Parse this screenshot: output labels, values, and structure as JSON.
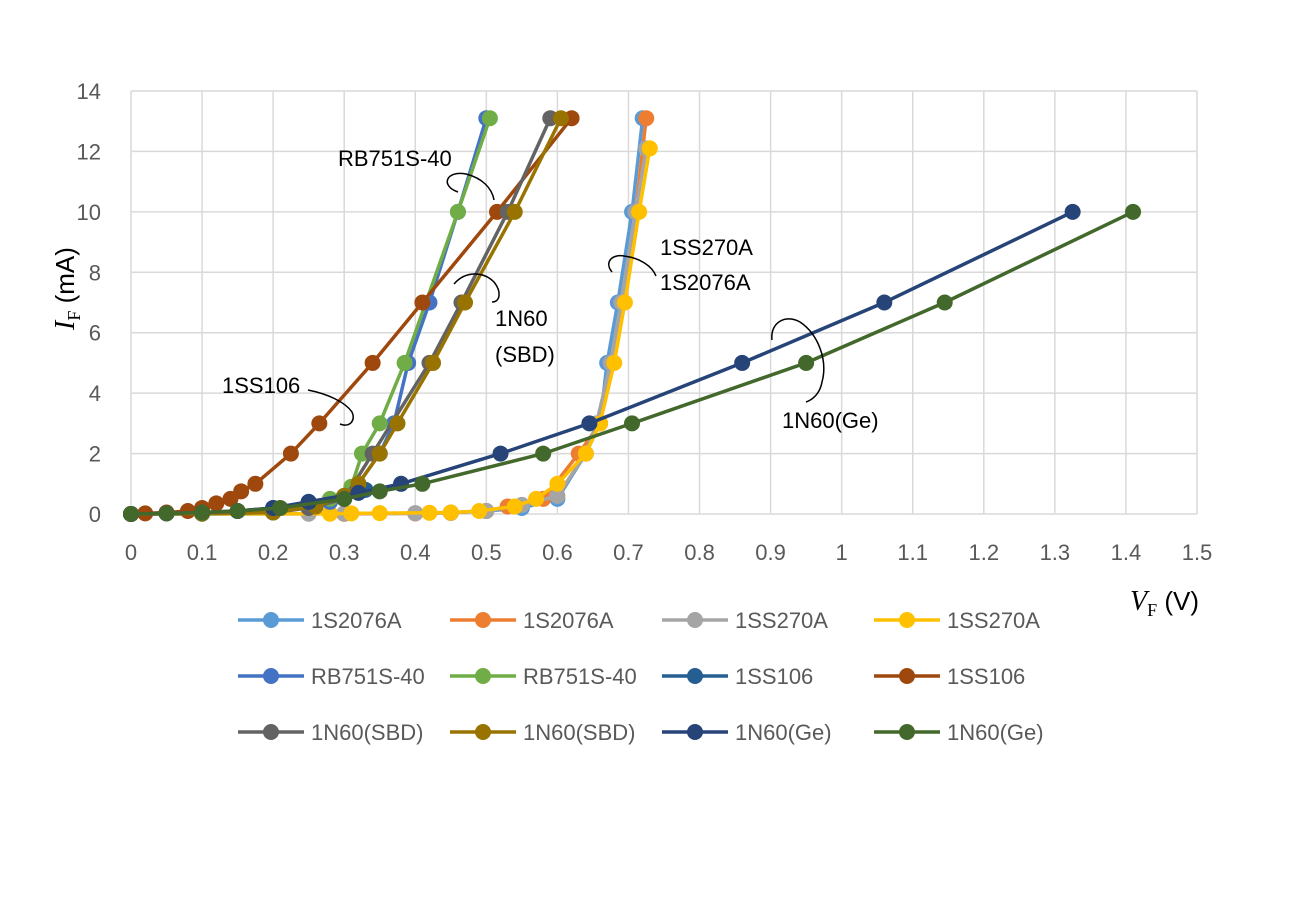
{
  "chart_data": {
    "type": "scatter",
    "xlabel": {
      "symbol": "V",
      "sub": "F",
      "unit": " (V)"
    },
    "ylabel": {
      "symbol": "I",
      "sub": "F",
      "unit": " (mA)"
    },
    "xlim": [
      0,
      1.5
    ],
    "ylim": [
      0,
      14
    ],
    "x_ticks": [
      0,
      0.1,
      0.2,
      0.3,
      0.4,
      0.5,
      0.6,
      0.7,
      0.8,
      0.9,
      1,
      1.1,
      1.2,
      1.3,
      1.4,
      1.5
    ],
    "x_tick_labels": [
      "0",
      "0.1",
      "0.2",
      "0.3",
      "0.4",
      "0.5",
      "0.6",
      "0.7",
      "0.8",
      "0.9",
      "1",
      "1.1",
      "1.2",
      "1.3",
      "1.4",
      "1.5"
    ],
    "y_ticks": [
      0,
      2,
      4,
      6,
      8,
      10,
      12,
      14
    ],
    "y_tick_labels": [
      "0",
      "2",
      "4",
      "6",
      "8",
      "10",
      "12",
      "14"
    ],
    "grid": true,
    "legend_position": "bottom",
    "annotations": [
      "RB751S-40",
      "1SS106",
      "1N60",
      "(SBD)",
      "1SS270A",
      "1S2076A",
      "1N60(Ge)"
    ],
    "series": [
      {
        "name": "1S2076A",
        "color": "#5B9BD5",
        "points": [
          [
            0,
            0
          ],
          [
            0.3,
            0.01
          ],
          [
            0.4,
            0.02
          ],
          [
            0.45,
            0.04
          ],
          [
            0.5,
            0.1
          ],
          [
            0.55,
            0.2
          ],
          [
            0.6,
            0.5
          ],
          [
            0.64,
            2
          ],
          [
            0.66,
            3
          ],
          [
            0.67,
            5
          ],
          [
            0.685,
            7
          ],
          [
            0.705,
            10
          ],
          [
            0.72,
            13.1
          ]
        ]
      },
      {
        "name": "1S2076A",
        "color": "#ED7D31",
        "points": [
          [
            0,
            0
          ],
          [
            0.3,
            0.01
          ],
          [
            0.4,
            0.02
          ],
          [
            0.45,
            0.04
          ],
          [
            0.5,
            0.1
          ],
          [
            0.53,
            0.25
          ],
          [
            0.58,
            0.5
          ],
          [
            0.63,
            2
          ],
          [
            0.66,
            3
          ],
          [
            0.675,
            5
          ],
          [
            0.69,
            7
          ],
          [
            0.71,
            10
          ],
          [
            0.725,
            13.1
          ]
        ]
      },
      {
        "name": "1SS270A",
        "color": "#A5A5A5",
        "points": [
          [
            0,
            0
          ],
          [
            0.25,
            0.01
          ],
          [
            0.3,
            0.02
          ],
          [
            0.4,
            0.03
          ],
          [
            0.45,
            0.05
          ],
          [
            0.5,
            0.1
          ],
          [
            0.55,
            0.3
          ],
          [
            0.6,
            0.6
          ],
          [
            0.64,
            2
          ],
          [
            0.655,
            3
          ],
          [
            0.675,
            5
          ],
          [
            0.69,
            7
          ],
          [
            0.71,
            10
          ],
          [
            0.725,
            12.1
          ]
        ]
      },
      {
        "name": "1SS270A",
        "color": "#FFC000",
        "points": [
          [
            0,
            0
          ],
          [
            0.28,
            0.01
          ],
          [
            0.31,
            0.02
          ],
          [
            0.35,
            0.03
          ],
          [
            0.42,
            0.04
          ],
          [
            0.45,
            0.05
          ],
          [
            0.49,
            0.1
          ],
          [
            0.54,
            0.25
          ],
          [
            0.57,
            0.5
          ],
          [
            0.6,
            1
          ],
          [
            0.64,
            2
          ],
          [
            0.66,
            3
          ],
          [
            0.68,
            5
          ],
          [
            0.695,
            7
          ],
          [
            0.715,
            10
          ],
          [
            0.73,
            12.1
          ]
        ]
      },
      {
        "name": "RB751S-40",
        "color": "#4472C4",
        "points": [
          [
            0,
            0
          ],
          [
            0.1,
            0.01
          ],
          [
            0.2,
            0.05
          ],
          [
            0.28,
            0.4
          ],
          [
            0.32,
            1
          ],
          [
            0.35,
            2
          ],
          [
            0.37,
            3
          ],
          [
            0.39,
            5
          ],
          [
            0.42,
            7
          ],
          [
            0.46,
            10
          ],
          [
            0.5,
            13.1
          ]
        ]
      },
      {
        "name": "RB751S-40",
        "color": "#70AD47",
        "points": [
          [
            0,
            0
          ],
          [
            0.1,
            0.01
          ],
          [
            0.2,
            0.05
          ],
          [
            0.28,
            0.5
          ],
          [
            0.31,
            0.9
          ],
          [
            0.325,
            2
          ],
          [
            0.35,
            3
          ],
          [
            0.385,
            5
          ],
          [
            0.46,
            10
          ],
          [
            0.505,
            13.1
          ]
        ]
      },
      {
        "name": "1SS106",
        "color": "#255E91",
        "points": [
          [
            0,
            0
          ],
          [
            0.05,
            0.02
          ],
          [
            0.1,
            0.05
          ],
          [
            0.15,
            0.1
          ],
          [
            0.2,
            0.2
          ],
          [
            0.25,
            0.4
          ],
          [
            0.3,
            0.6
          ],
          [
            0.33,
            0.8
          ]
        ]
      },
      {
        "name": "1SS106",
        "color": "#9E480E",
        "points": [
          [
            0,
            0
          ],
          [
            0.02,
            0.02
          ],
          [
            0.05,
            0.05
          ],
          [
            0.08,
            0.1
          ],
          [
            0.1,
            0.2
          ],
          [
            0.12,
            0.35
          ],
          [
            0.14,
            0.5
          ],
          [
            0.155,
            0.75
          ],
          [
            0.175,
            1
          ],
          [
            0.225,
            2
          ],
          [
            0.265,
            3
          ],
          [
            0.34,
            5
          ],
          [
            0.41,
            7
          ],
          [
            0.515,
            10
          ],
          [
            0.62,
            13.1
          ]
        ]
      },
      {
        "name": "1N60(SBD)",
        "color": "#636363",
        "points": [
          [
            0,
            0
          ],
          [
            0.1,
            0.02
          ],
          [
            0.2,
            0.05
          ],
          [
            0.25,
            0.2
          ],
          [
            0.3,
            0.5
          ],
          [
            0.34,
            2
          ],
          [
            0.42,
            5
          ],
          [
            0.465,
            7
          ],
          [
            0.53,
            10
          ],
          [
            0.59,
            13.1
          ]
        ]
      },
      {
        "name": "1N60(SBD)",
        "color": "#997300",
        "points": [
          [
            0,
            0
          ],
          [
            0.1,
            0.02
          ],
          [
            0.2,
            0.05
          ],
          [
            0.26,
            0.25
          ],
          [
            0.3,
            0.6
          ],
          [
            0.32,
            1
          ],
          [
            0.35,
            2
          ],
          [
            0.375,
            3
          ],
          [
            0.425,
            5
          ],
          [
            0.47,
            7
          ],
          [
            0.54,
            10
          ],
          [
            0.605,
            13.1
          ]
        ]
      },
      {
        "name": "1N60(Ge)",
        "color": "#264478",
        "points": [
          [
            0,
            0
          ],
          [
            0.05,
            0.02
          ],
          [
            0.1,
            0.05
          ],
          [
            0.15,
            0.1
          ],
          [
            0.2,
            0.2
          ],
          [
            0.25,
            0.4
          ],
          [
            0.32,
            0.7
          ],
          [
            0.38,
            1
          ],
          [
            0.52,
            2
          ],
          [
            0.645,
            3
          ],
          [
            0.86,
            5
          ],
          [
            1.06,
            7
          ],
          [
            1.325,
            10
          ]
        ]
      },
      {
        "name": "1N60(Ge)",
        "color": "#43682B",
        "points": [
          [
            0,
            0
          ],
          [
            0.05,
            0.02
          ],
          [
            0.1,
            0.05
          ],
          [
            0.15,
            0.1
          ],
          [
            0.21,
            0.2
          ],
          [
            0.3,
            0.5
          ],
          [
            0.35,
            0.75
          ],
          [
            0.41,
            1
          ],
          [
            0.58,
            2
          ],
          [
            0.705,
            3
          ],
          [
            0.95,
            5
          ],
          [
            1.145,
            7
          ],
          [
            1.41,
            10
          ]
        ]
      }
    ]
  }
}
